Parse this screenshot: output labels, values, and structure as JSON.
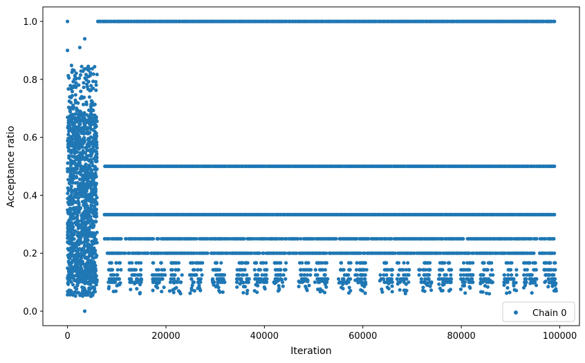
{
  "chart_data": {
    "type": "scatter",
    "xlabel": "Iteration",
    "ylabel": "Acceptance ratio",
    "xlim": [
      -5000,
      104000
    ],
    "ylim": [
      -0.05,
      1.05
    ],
    "xticks": [
      0,
      20000,
      40000,
      60000,
      80000,
      100000
    ],
    "xtick_labels": [
      "0",
      "20000",
      "40000",
      "60000",
      "80000",
      "100000"
    ],
    "yticks": [
      0.0,
      0.2,
      0.4,
      0.6,
      0.8,
      1.0
    ],
    "ytick_labels": [
      "0.0",
      "0.2",
      "0.4",
      "0.6",
      "0.8",
      "1.0"
    ],
    "grid": false,
    "legend_position": "bottom-right",
    "series": [
      {
        "name": "Chain 0",
        "color": "#1f77b4",
        "marker": "circle",
        "description_points": {
          "burn_in_range": [
            0,
            6000
          ],
          "burn_in_value_range": [
            0.0,
            1.0
          ],
          "dense_levels": [
            1.0,
            0.5,
            0.3333,
            0.25,
            0.2
          ],
          "sparse_levels": [
            0.1667,
            0.1429,
            0.125,
            0.1111,
            0.1
          ],
          "x_max": 99000
        }
      }
    ]
  }
}
